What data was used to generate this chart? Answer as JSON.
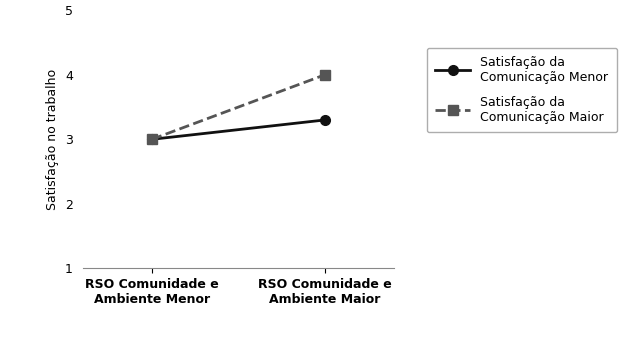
{
  "x_labels": [
    "RSO Comunidade e\nAmbiente Menor",
    "RSO Comunidade e\nAmbiente Maior"
  ],
  "line1_values": [
    3.0,
    3.3
  ],
  "line2_values": [
    3.0,
    4.0
  ],
  "line1_label": "Satisfação da\nComunicação Menor",
  "line2_label": "Satisfação da\nComunicação Maior",
  "ylabel": "Satisfação no trabalho",
  "ylim": [
    1,
    5
  ],
  "yticks": [
    1,
    2,
    3,
    4,
    5
  ],
  "line1_color": "#111111",
  "line2_color": "#555555",
  "background_color": "#ffffff",
  "marker1": "o",
  "marker2": "s",
  "line1_style": "-",
  "line2_style": "--",
  "linewidth": 2.0,
  "markersize": 7,
  "legend_fontsize": 9,
  "ylabel_fontsize": 9,
  "tick_fontsize": 9,
  "xtick_fontsize": 9
}
